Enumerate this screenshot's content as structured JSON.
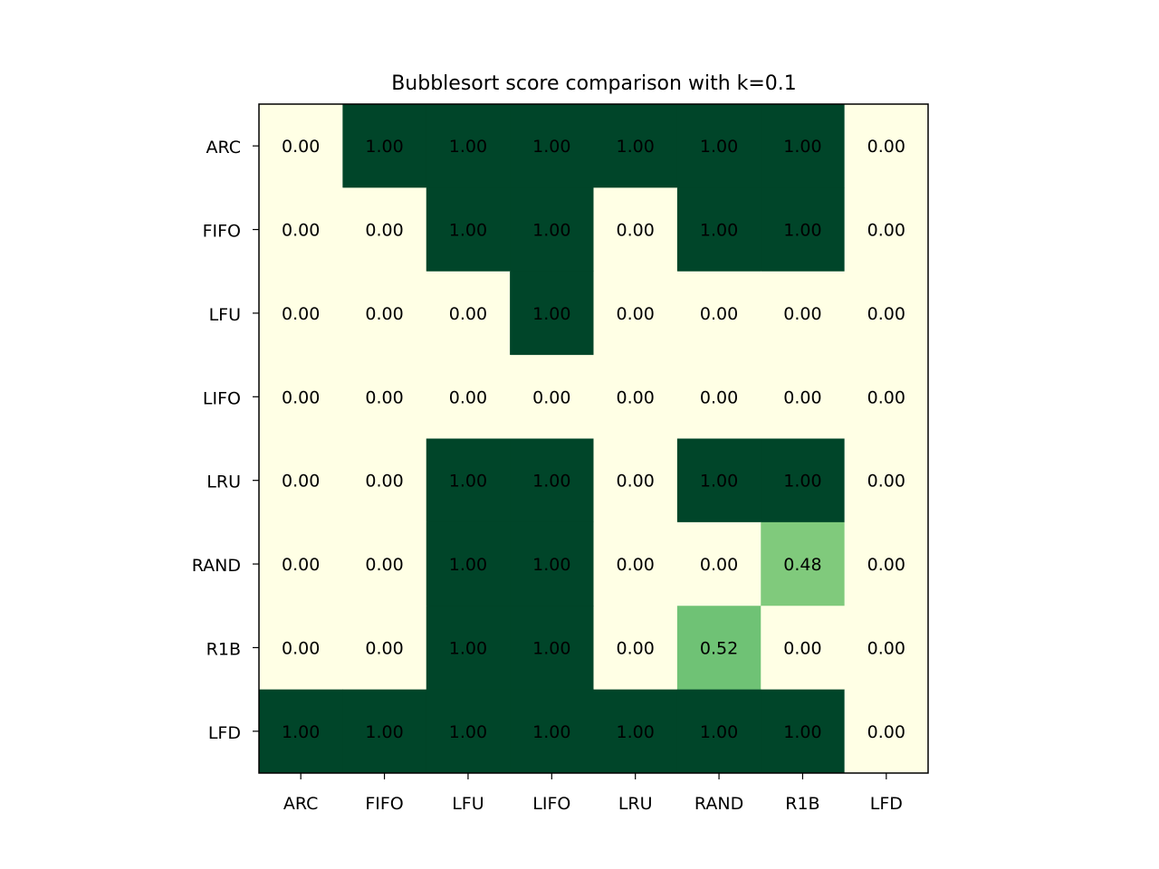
{
  "chart_data": {
    "type": "heatmap",
    "title": "Bubblesort score comparison with k=0.1",
    "x_categories": [
      "ARC",
      "FIFO",
      "LFU",
      "LIFO",
      "LRU",
      "RAND",
      "R1B",
      "LFD"
    ],
    "y_categories": [
      "ARC",
      "FIFO",
      "LFU",
      "LIFO",
      "LRU",
      "RAND",
      "R1B",
      "LFD"
    ],
    "values": [
      [
        0.0,
        1.0,
        1.0,
        1.0,
        1.0,
        1.0,
        1.0,
        0.0
      ],
      [
        0.0,
        0.0,
        1.0,
        1.0,
        0.0,
        1.0,
        1.0,
        0.0
      ],
      [
        0.0,
        0.0,
        0.0,
        1.0,
        0.0,
        0.0,
        0.0,
        0.0
      ],
      [
        0.0,
        0.0,
        0.0,
        0.0,
        0.0,
        0.0,
        0.0,
        0.0
      ],
      [
        0.0,
        0.0,
        1.0,
        1.0,
        0.0,
        1.0,
        1.0,
        0.0
      ],
      [
        0.0,
        0.0,
        1.0,
        1.0,
        0.0,
        0.0,
        0.48,
        0.0
      ],
      [
        0.0,
        0.0,
        1.0,
        1.0,
        0.0,
        0.52,
        0.0,
        0.0
      ],
      [
        1.0,
        1.0,
        1.0,
        1.0,
        1.0,
        1.0,
        1.0,
        0.0
      ]
    ],
    "value_range": [
      0,
      1
    ],
    "colormap": "YlGn",
    "color_low": "#ffffe5",
    "color_high": "#004529",
    "grid": false,
    "legend": "none"
  }
}
